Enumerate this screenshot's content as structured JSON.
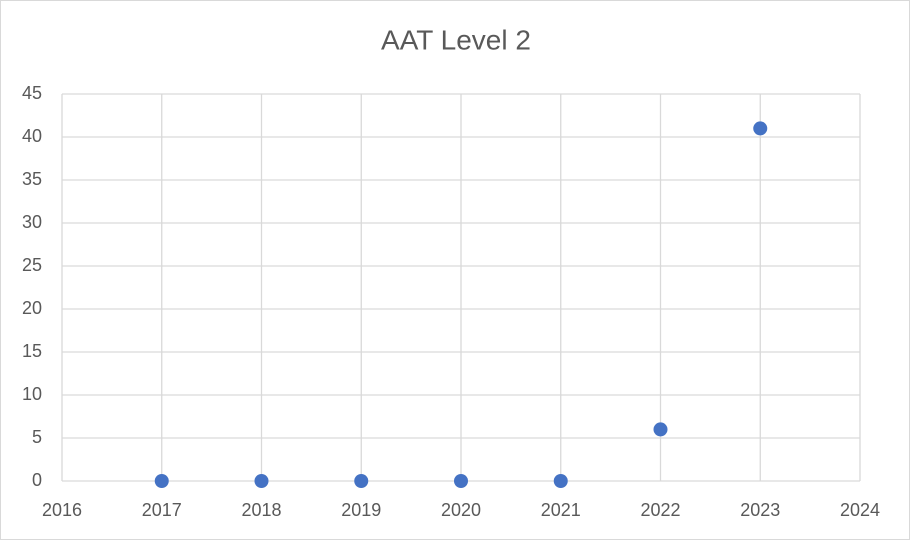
{
  "chart_data": {
    "type": "scatter",
    "title": "AAT Level 2",
    "series": [
      {
        "color": "#4472c4",
        "x": [
          2017,
          2018,
          2019,
          2020,
          2021,
          2022,
          2023
        ],
        "values": [
          0,
          0,
          0,
          0,
          0,
          6,
          41
        ]
      }
    ],
    "xlim": [
      2016,
      2024
    ],
    "xticks": [
      2016,
      2017,
      2018,
      2019,
      2020,
      2021,
      2022,
      2023,
      2024
    ],
    "ylim": [
      0,
      45
    ],
    "yticks": [
      0,
      5,
      10,
      15,
      20,
      25,
      30,
      35,
      40,
      45
    ],
    "grid": true
  }
}
